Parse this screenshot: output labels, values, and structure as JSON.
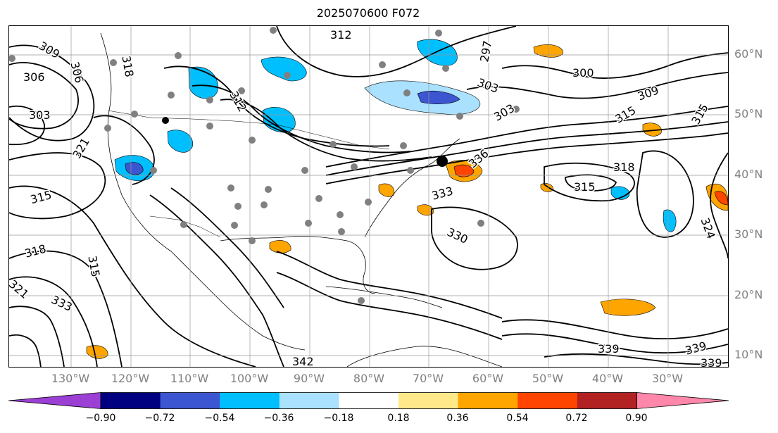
{
  "title": "2025070600 F072",
  "lat_labels": [
    "60°N",
    "50°N",
    "40°N",
    "30°N",
    "20°N",
    "10°N"
  ],
  "lon_labels": [
    "130°W",
    "120°W",
    "110°W",
    "100°W",
    "90°W",
    "80°W",
    "70°W",
    "60°W",
    "50°W",
    "40°W",
    "30°W"
  ],
  "contour_labels": [
    "312",
    "309",
    "306",
    "303",
    "306",
    "318",
    "312",
    "297",
    "303",
    "300",
    "309",
    "315",
    "315",
    "303",
    "321",
    "336",
    "318",
    "315",
    "333",
    "315",
    "330",
    "318",
    "315",
    "324",
    "321",
    "333",
    "339",
    "339",
    "342",
    "339"
  ],
  "colorbar": {
    "tick_labels": [
      "−0.90",
      "−0.72",
      "−0.54",
      "−0.36",
      "−0.18",
      "0.18",
      "0.36",
      "0.54",
      "0.72",
      "0.90"
    ],
    "colors": [
      "#9b3fd5",
      "#000080",
      "#3c55d0",
      "#00bfff",
      "#aae1ff",
      "#ffffff",
      "#ffe88a",
      "#ffa500",
      "#ff4500",
      "#b22222",
      "#ff88aa"
    ]
  },
  "colors": {
    "negative_light": "#aae1ff",
    "negative": "#00bfff",
    "negative_strong": "#3c55d0",
    "positive_light": "#ffe88a",
    "positive": "#ffa500",
    "positive_strong": "#ff4500",
    "observation_marker": "#808080"
  }
}
